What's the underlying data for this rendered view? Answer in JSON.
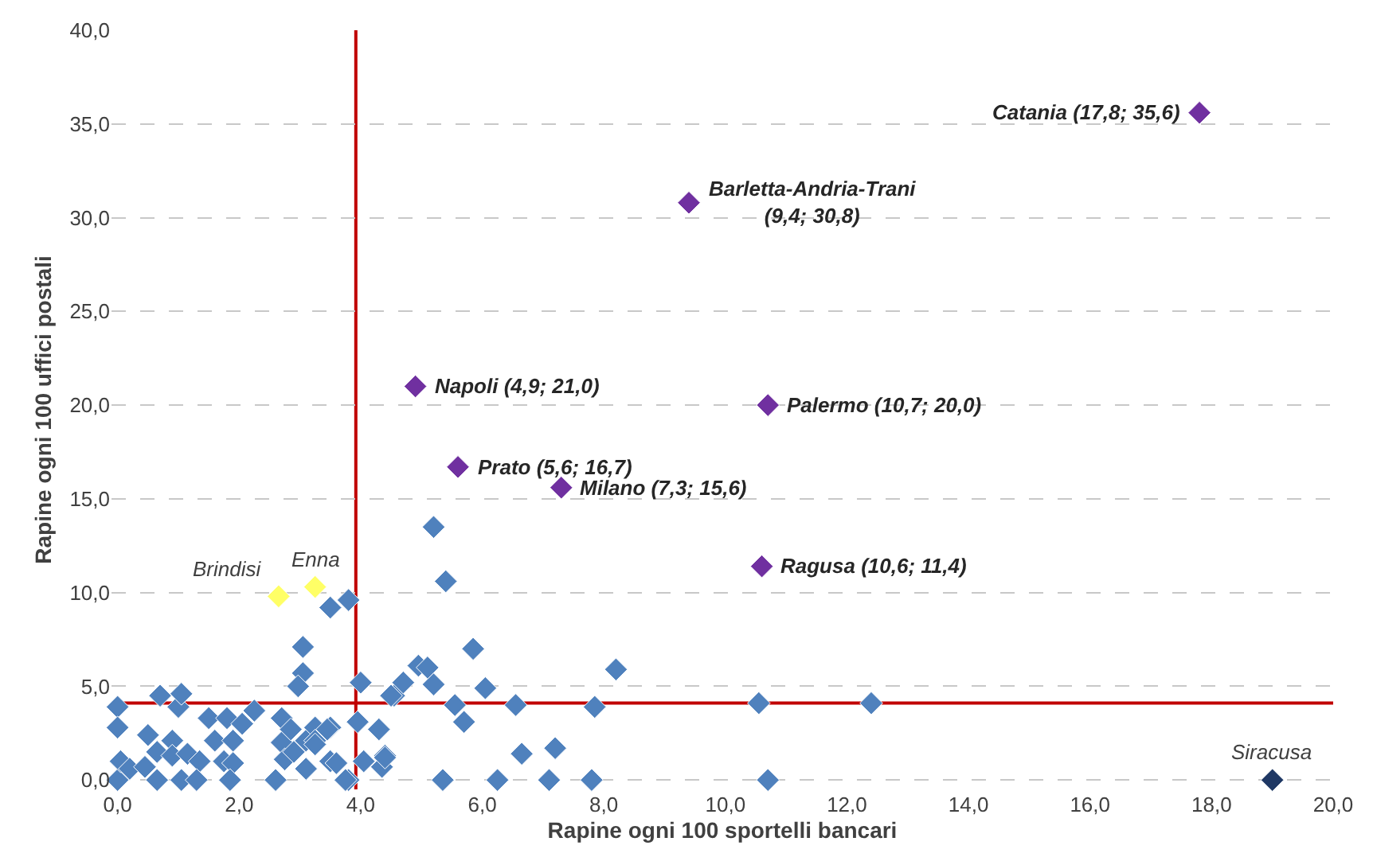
{
  "chart_data": {
    "type": "scatter",
    "xlabel": "Rapine ogni 100 sportelli bancari",
    "ylabel": "Rapine ogni 100 uffici postali",
    "marker": "diamond",
    "grid": "y",
    "xlim": [
      -0.1,
      20
    ],
    "ylim": [
      -0.5,
      40
    ],
    "xticks": [
      {
        "value": 0,
        "label": "0,0"
      },
      {
        "value": 2,
        "label": "2,0"
      },
      {
        "value": 4,
        "label": "4,0"
      },
      {
        "value": 6,
        "label": "6,0"
      },
      {
        "value": 8,
        "label": "8,0"
      },
      {
        "value": 10,
        "label": "10,0"
      },
      {
        "value": 12,
        "label": "12,0"
      },
      {
        "value": 14,
        "label": "14,0"
      },
      {
        "value": 16,
        "label": "16,0"
      },
      {
        "value": 18,
        "label": "18,0"
      },
      {
        "value": 20,
        "label": "20,0"
      }
    ],
    "yticks": [
      {
        "value": 0,
        "label": "0,0"
      },
      {
        "value": 5,
        "label": "5,0"
      },
      {
        "value": 10,
        "label": "10,0"
      },
      {
        "value": 15,
        "label": "15,0"
      },
      {
        "value": 20,
        "label": "20,0"
      },
      {
        "value": 25,
        "label": "25,0"
      },
      {
        "value": 30,
        "label": "30,0"
      },
      {
        "value": 35,
        "label": "35,0"
      },
      {
        "value": 40,
        "label": "40,0"
      }
    ],
    "series": [
      {
        "color": "#4f81bd",
        "x": [
          0,
          0,
          0,
          0.05,
          0.2,
          0.45,
          0.5,
          0.65,
          0.7,
          0.9,
          0.9,
          1.0,
          1.05,
          1.15,
          1.35,
          1.5,
          1.6,
          1.75,
          1.8,
          1.9,
          1.9,
          2.05,
          2.25,
          2.7,
          2.7,
          2.75,
          2.85,
          2.9,
          3.1,
          3.25,
          3.25,
          3.5,
          3.5,
          3.6,
          3.1,
          3.95,
          4.3,
          4.05,
          4.4,
          4.35,
          0.65,
          1.05,
          1.3,
          1.85,
          2.6,
          3.8,
          3.5,
          3.8,
          3.05,
          3.05,
          2.97,
          4.0,
          4.55,
          4.5,
          4.7,
          4.95,
          5.1,
          5.2,
          5.2,
          5.4,
          5.85,
          6.05,
          5.55,
          6.55,
          7.85,
          5.7,
          8.2,
          6.65,
          7.2,
          4.4,
          3.75,
          5.35,
          6.25,
          7.1,
          7.8,
          10.55,
          12.4,
          10.7,
          3.25,
          3.45
        ],
        "values": [
          3.9,
          2.8,
          0,
          1.0,
          0.6,
          0.7,
          2.4,
          1.5,
          4.5,
          2.1,
          1.3,
          3.9,
          4.6,
          1.4,
          1.0,
          3.3,
          2.1,
          1.0,
          3.3,
          2.1,
          0.9,
          3.0,
          3.7,
          3.3,
          2.0,
          1.1,
          2.7,
          1.5,
          2.1,
          2.8,
          2.1,
          2.8,
          1.0,
          0.9,
          0.6,
          3.1,
          2.7,
          1.0,
          1.3,
          0.7,
          0,
          0,
          0,
          0,
          0,
          0,
          9.2,
          9.6,
          7.1,
          5.7,
          5.0,
          5.2,
          4.5,
          4.5,
          5.2,
          6.1,
          6.0,
          5.1,
          13.5,
          10.6,
          7.0,
          4.9,
          4.0,
          4.0,
          3.9,
          3.1,
          5.9,
          1.4,
          1.7,
          1.2,
          0,
          0,
          0,
          0,
          0,
          4.1,
          4.1,
          0,
          1.9,
          2.7
        ]
      },
      {
        "color": "#7030a0",
        "x": [
          17.8,
          9.4,
          4.9,
          10.7,
          5.6,
          7.3,
          10.6
        ],
        "values": [
          35.6,
          30.8,
          21.0,
          20.0,
          16.7,
          15.6,
          11.4
        ]
      },
      {
        "color": "#ffff66",
        "x": [
          2.65,
          3.25
        ],
        "values": [
          9.8,
          10.3
        ]
      },
      {
        "color": "#1f3864",
        "x": [
          19.0
        ],
        "values": [
          0
        ]
      }
    ],
    "ref_lines": [
      {
        "axis": "x",
        "value": 3.92,
        "color": "#c00000"
      },
      {
        "axis": "y",
        "value": 4.11,
        "color": "#c00000"
      }
    ],
    "annotations": [
      {
        "text": "Catania (17,8; 35,6)",
        "x": 17.8,
        "y": 35.6
      },
      {
        "text": "Barletta-Andria-Trani\n(9,4; 30,8)",
        "x": 9.4,
        "y": 30.8
      },
      {
        "text": "Napoli (4,9; 21,0)",
        "x": 4.9,
        "y": 21.0
      },
      {
        "text": "Palermo (10,7; 20,0)",
        "x": 10.7,
        "y": 20.0
      },
      {
        "text": "Prato (5,6; 16,7)",
        "x": 5.6,
        "y": 16.7
      },
      {
        "text": "Milano (7,3; 15,6)",
        "x": 7.3,
        "y": 15.6
      },
      {
        "text": "Ragusa (10,6; 11,4)",
        "x": 10.6,
        "y": 11.4
      },
      {
        "text": "Brindisi",
        "x": 2.65,
        "y": 9.8
      },
      {
        "text": "Enna",
        "x": 3.25,
        "y": 10.3
      },
      {
        "text": "Siracusa",
        "x": 19.0,
        "y": 0
      }
    ]
  }
}
